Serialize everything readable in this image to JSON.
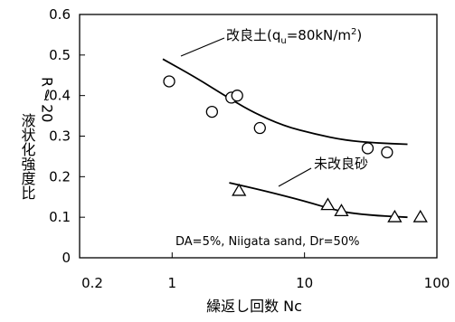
{
  "chart_data": {
    "type": "scatter",
    "title": "",
    "xlabel": "繰返し回数 Nc",
    "ylabel": "液状化強度比",
    "ylabel_right": "Rℓ20",
    "xscale": "log",
    "xlim": [
      0.2,
      100
    ],
    "ylim": [
      0,
      0.6
    ],
    "xticks": [
      0.2,
      1,
      10,
      100
    ],
    "xtick_labels": [
      "0.2",
      "1",
      "10",
      "100"
    ],
    "yticks": [
      0,
      0.1,
      0.2,
      0.3,
      0.4,
      0.5,
      0.6
    ],
    "ytick_labels": [
      "0",
      "0.1",
      "0.2",
      "0.3",
      "0.4",
      "0.5",
      "0.6"
    ],
    "grid": false,
    "series": [
      {
        "name": "改良土(qu=80kN/m²)",
        "marker": "circle",
        "x": [
          0.95,
          2.0,
          2.8,
          3.1,
          4.6,
          30,
          42
        ],
        "y": [
          0.435,
          0.36,
          0.395,
          0.4,
          0.32,
          0.27,
          0.26
        ],
        "curve_x": [
          0.85,
          1.5,
          2.5,
          4,
          7,
          12,
          20,
          35,
          60
        ],
        "curve_y": [
          0.49,
          0.445,
          0.4,
          0.36,
          0.325,
          0.305,
          0.29,
          0.283,
          0.28
        ]
      },
      {
        "name": "未改良砂",
        "marker": "triangle",
        "x": [
          3.2,
          15,
          19,
          48,
          75
        ],
        "y": [
          0.165,
          0.13,
          0.115,
          0.1,
          0.1
        ],
        "curve_x": [
          2.7,
          5,
          10,
          18,
          30,
          60
        ],
        "curve_y": [
          0.185,
          0.165,
          0.14,
          0.115,
          0.105,
          0.1
        ]
      }
    ],
    "annotations": {
      "label1": "改良土(q",
      "label1_sub": "u",
      "label1_tail": "=80kN/m",
      "label1_sup": "2",
      "label1_close": ")",
      "label2": "未改良砂",
      "note": "DA=5%, Niigata sand, Dr=50%"
    }
  }
}
